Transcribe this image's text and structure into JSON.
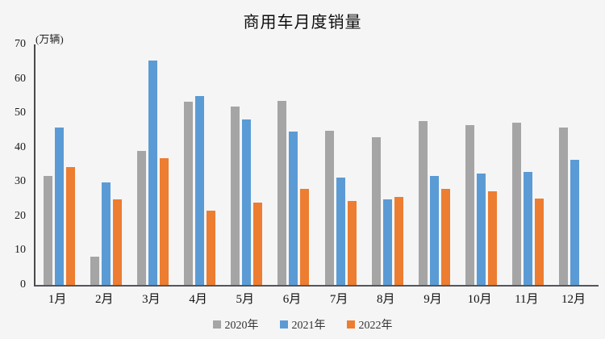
{
  "chart_data": {
    "type": "bar",
    "title": "商用车月度销量",
    "unit_label": "(万辆)",
    "categories": [
      "1月",
      "2月",
      "3月",
      "4月",
      "5月",
      "6月",
      "7月",
      "8月",
      "9月",
      "10月",
      "11月",
      "12月"
    ],
    "series": [
      {
        "name": "2020年",
        "color": "#A5A5A5",
        "values": [
          31.8,
          8.3,
          38.9,
          53.4,
          52.0,
          53.6,
          44.9,
          43.1,
          47.7,
          46.5,
          47.3,
          45.7
        ]
      },
      {
        "name": "2021年",
        "color": "#5B9BD5",
        "values": [
          45.9,
          29.8,
          65.4,
          55.0,
          48.2,
          44.7,
          31.3,
          24.8,
          31.8,
          32.5,
          33.0,
          36.3
        ]
      },
      {
        "name": "2022年",
        "color": "#ED7D31",
        "values": [
          34.4,
          24.9,
          37.0,
          21.7,
          24.0,
          28.0,
          24.5,
          25.7,
          28.0,
          27.3,
          25.2,
          null
        ]
      }
    ],
    "ylim": [
      0,
      70
    ],
    "ytick_step": 10,
    "grid": false,
    "legend_position": "bottom",
    "background_color": "#F5F5F6",
    "axis_color": "#4A4A4A"
  }
}
